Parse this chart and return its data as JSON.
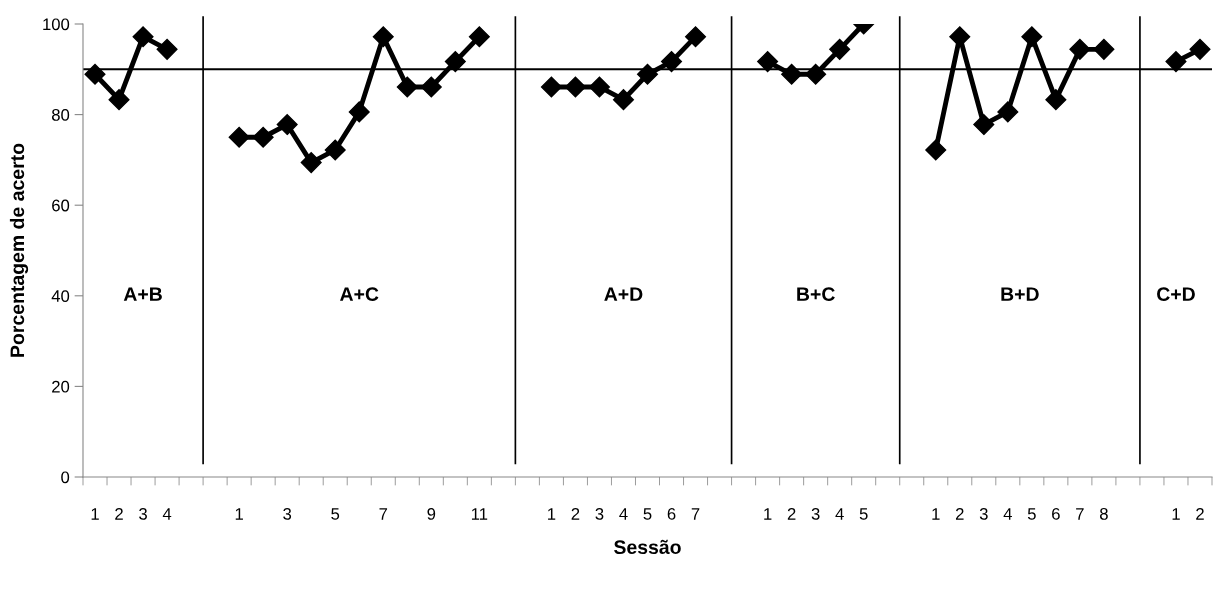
{
  "chart_data": {
    "type": "line",
    "xlabel": "Sessão",
    "ylabel": "Porcentagem de acerto",
    "categories": [
      "1",
      "2",
      "3",
      "4",
      null,
      null,
      "1",
      null,
      "3",
      null,
      "5",
      null,
      "7",
      null,
      "9",
      null,
      "11",
      null,
      null,
      "1",
      "2",
      "3",
      "4",
      "5",
      "6",
      "7",
      null,
      null,
      "1",
      "2",
      "3",
      "4",
      "5",
      null,
      null,
      "1",
      "2",
      "3",
      "4",
      "5",
      "6",
      "7",
      "8",
      null,
      null,
      "1",
      "2"
    ],
    "series": [
      {
        "color": "#000000",
        "values": [
          88.9,
          83.3,
          97.2,
          94.4,
          null,
          null,
          75.0,
          75.0,
          77.8,
          69.4,
          72.2,
          80.6,
          97.2,
          86.1,
          86.1,
          91.7,
          97.2,
          null,
          null,
          86.1,
          86.1,
          86.1,
          83.3,
          88.9,
          91.7,
          97.2,
          null,
          null,
          91.7,
          88.9,
          88.9,
          94.4,
          100,
          null,
          null,
          72.2,
          97.2,
          77.8,
          80.6,
          97.2,
          83.3,
          94.4,
          94.4,
          null,
          null,
          91.7,
          94.4
        ]
      }
    ],
    "ylim": [
      0,
      100
    ],
    "yticks": [
      0,
      20,
      40,
      60,
      80,
      100
    ],
    "marker": "diamond",
    "line_style": "solid",
    "grid": false,
    "legend": false,
    "ref_lines": [
      {
        "axis": "y",
        "value": 90,
        "color": "#000000"
      }
    ],
    "annotations": [
      "A+B",
      "A+C",
      "A+D",
      "B+C",
      "B+D",
      "C+D"
    ]
  }
}
